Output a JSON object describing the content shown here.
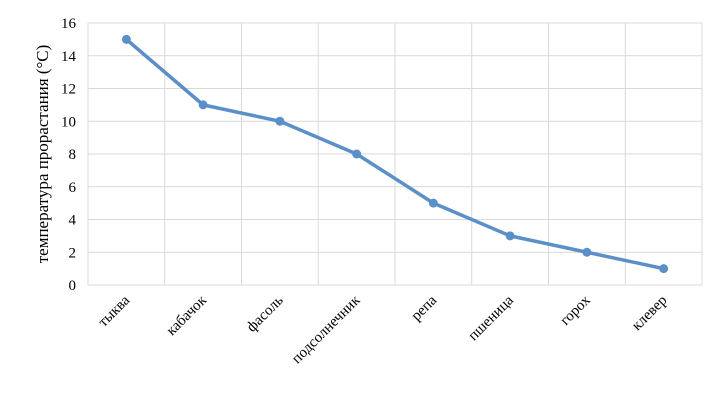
{
  "chart_data": {
    "type": "line",
    "title": "",
    "xlabel": "",
    "ylabel": "температура прорастания (°С)",
    "categories": [
      "тыква",
      "кабачок",
      "фасоль",
      "подсолнечник",
      "репа",
      "пшеница",
      "горох",
      "клевер"
    ],
    "series": [
      {
        "values": [
          15,
          11,
          10,
          8,
          5,
          3,
          2,
          1
        ]
      }
    ],
    "ylim": [
      0,
      16
    ],
    "yticks": [
      "0",
      "2",
      "4",
      "6",
      "8",
      "10",
      "12",
      "14",
      "16"
    ],
    "grid": true,
    "legend": "none",
    "colors": {
      "series": "#5b8fc8",
      "grid": "#d9d9d9",
      "text": "#000000"
    }
  }
}
